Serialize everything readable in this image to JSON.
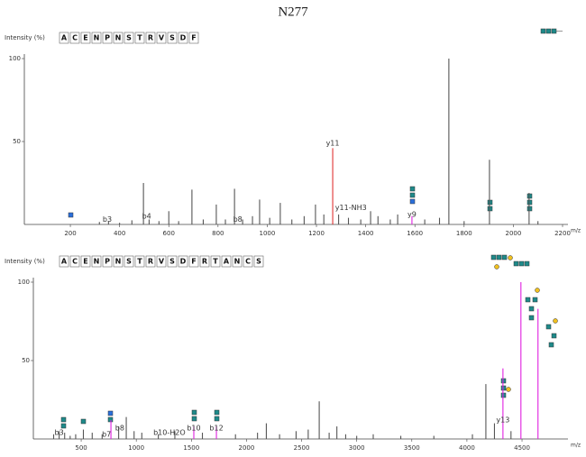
{
  "title": "N277",
  "chart_data": [
    {
      "type": "bar",
      "y_label": "Intensity (%)",
      "x_label": "m/z",
      "sequence": [
        {
          "text": "A",
          "color": "#111"
        },
        {
          "text": "C",
          "color": "#111"
        },
        {
          "text": "E",
          "color": "#111"
        },
        {
          "text": "N",
          "color": "#111"
        },
        {
          "text": "P",
          "color": "#111"
        },
        {
          "text": "N",
          "color": "#e020e0"
        },
        {
          "text": "S",
          "color": "#111"
        },
        {
          "text": "T",
          "color": "#111"
        },
        {
          "text": "R",
          "color": "#111"
        },
        {
          "text": "V",
          "color": "#111"
        },
        {
          "text": "S",
          "color": "#111"
        },
        {
          "text": "D",
          "color": "#111"
        },
        {
          "text": "F",
          "color": "#111"
        }
      ],
      "xlim": [
        13,
        2222
      ],
      "ylim": [
        0,
        100
      ],
      "xticks": [
        200,
        400,
        600,
        800,
        1000,
        1200,
        1400,
        1600,
        1800,
        2000,
        2200
      ],
      "yticks": [
        50,
        100
      ],
      "x": [
        318,
        355,
        400,
        450,
        497,
        520,
        560,
        600,
        640,
        694,
        740,
        793,
        830,
        867,
        900,
        940,
        969,
        1010,
        1053,
        1100,
        1150,
        1196,
        1230,
        1266,
        1290,
        1330,
        1380,
        1420,
        1450,
        1500,
        1530,
        1588,
        1640,
        1700,
        1738,
        1800,
        1903,
        2064,
        2100
      ],
      "values": [
        1.5,
        2,
        1,
        2.5,
        25,
        3,
        2,
        8,
        2,
        21,
        3,
        12,
        3,
        21.5,
        3,
        5,
        15,
        4,
        13,
        3,
        5,
        12,
        6,
        46,
        6,
        4,
        3,
        8,
        5,
        3,
        6,
        5,
        3,
        4,
        100,
        2,
        39,
        19,
        2
      ],
      "colors": [
        "#555",
        "#555",
        "#555",
        "#555",
        "#555",
        "#555",
        "#555",
        "#555",
        "#555",
        "#555",
        "#555",
        "#555",
        "#555",
        "#555",
        "#555",
        "#555",
        "#555",
        "#555",
        "#555",
        "#555",
        "#555",
        "#555",
        "#555",
        "#e03030",
        "#555",
        "#555",
        "#555",
        "#555",
        "#555",
        "#555",
        "#555",
        "#e020e0",
        "#555",
        "#555",
        "#555",
        "#555",
        "#555",
        "#555",
        "#555"
      ],
      "annotations": [
        {
          "text": "b3",
          "x": 350,
          "y": 3,
          "color": "#333"
        },
        {
          "text": "b4",
          "x": 510,
          "y": 5,
          "color": "#333"
        },
        {
          "text": "b8",
          "x": 880,
          "y": 3,
          "color": "#333"
        },
        {
          "text": "y11",
          "x": 1266,
          "y": 49,
          "color": "#333"
        },
        {
          "text": "y11-NH3",
          "x": 1340,
          "y": 10,
          "color": "#333"
        },
        {
          "text": "y9",
          "x": 1588,
          "y": 6,
          "color": "#e020e0"
        }
      ]
    },
    {
      "type": "bar",
      "y_label": "Intensity (%)",
      "x_label": "m/z",
      "sequence": [
        {
          "text": "A",
          "color": "#111"
        },
        {
          "text": "C",
          "color": "#111"
        },
        {
          "text": "E",
          "color": "#111"
        },
        {
          "text": "N",
          "color": "#111"
        },
        {
          "text": "P",
          "color": "#111"
        },
        {
          "text": "N",
          "color": "#e020e0"
        },
        {
          "text": "S",
          "color": "#111"
        },
        {
          "text": "T",
          "color": "#111"
        },
        {
          "text": "R",
          "color": "#111"
        },
        {
          "text": "V",
          "color": "#111"
        },
        {
          "text": "S",
          "color": "#111"
        },
        {
          "text": "D",
          "color": "#111"
        },
        {
          "text": "F",
          "color": "#111"
        },
        {
          "text": "R",
          "color": "#111"
        },
        {
          "text": "T",
          "color": "#111"
        },
        {
          "text": "A",
          "color": "#111"
        },
        {
          "text": "N",
          "color": "#111"
        },
        {
          "text": "C",
          "color": "#111"
        },
        {
          "text": "S",
          "color": "#111"
        }
      ],
      "xlim": [
        66,
        4917
      ],
      "ylim": [
        0,
        100
      ],
      "xticks": [
        500,
        1000,
        1500,
        2000,
        2500,
        3000,
        3500,
        4000,
        4500
      ],
      "yticks": [
        50,
        100
      ],
      "x": [
        250,
        300,
        350,
        400,
        450,
        520,
        600,
        690,
        770,
        840,
        909,
        980,
        1050,
        1200,
        1350,
        1522,
        1600,
        1727,
        1900,
        2100,
        2180,
        2300,
        2450,
        2560,
        2660,
        2750,
        2820,
        2900,
        3000,
        3150,
        3400,
        3700,
        4050,
        4172,
        4250,
        4327,
        4400,
        4490,
        4645
      ],
      "values": [
        3,
        5,
        4,
        2,
        3,
        6,
        4,
        3,
        12,
        8,
        14,
        5,
        4,
        3,
        5,
        8,
        4,
        8,
        3,
        4,
        10,
        3,
        5,
        6,
        24,
        4,
        8,
        3,
        2,
        3,
        2,
        2,
        3,
        35,
        10,
        45,
        5,
        100,
        83
      ],
      "colors": [
        "#555",
        "#555",
        "#555",
        "#555",
        "#555",
        "#555",
        "#555",
        "#555",
        "#e020e0",
        "#555",
        "#555",
        "#555",
        "#555",
        "#555",
        "#555",
        "#e020e0",
        "#555",
        "#e020e0",
        "#555",
        "#555",
        "#555",
        "#555",
        "#555",
        "#555",
        "#555",
        "#555",
        "#555",
        "#555",
        "#555",
        "#555",
        "#555",
        "#555",
        "#555",
        "#555",
        "#555",
        "#e020e0",
        "#555",
        "#e020e0",
        "#e020e0"
      ],
      "annotations": [
        {
          "text": "b3",
          "x": 300,
          "y": 4,
          "color": "#333"
        },
        {
          "text": "b7",
          "x": 730,
          "y": 3,
          "color": "#333"
        },
        {
          "text": "b8",
          "x": 850,
          "y": 7,
          "color": "#333"
        },
        {
          "text": "b10-H2O",
          "x": 1300,
          "y": 4,
          "color": "#333"
        },
        {
          "text": "b10",
          "x": 1522,
          "y": 7,
          "color": "#e020e0"
        },
        {
          "text": "b12",
          "x": 1727,
          "y": 7,
          "color": "#e020e0"
        },
        {
          "text": "y13",
          "x": 4327,
          "y": 12,
          "color": "#e020e0"
        }
      ]
    }
  ]
}
